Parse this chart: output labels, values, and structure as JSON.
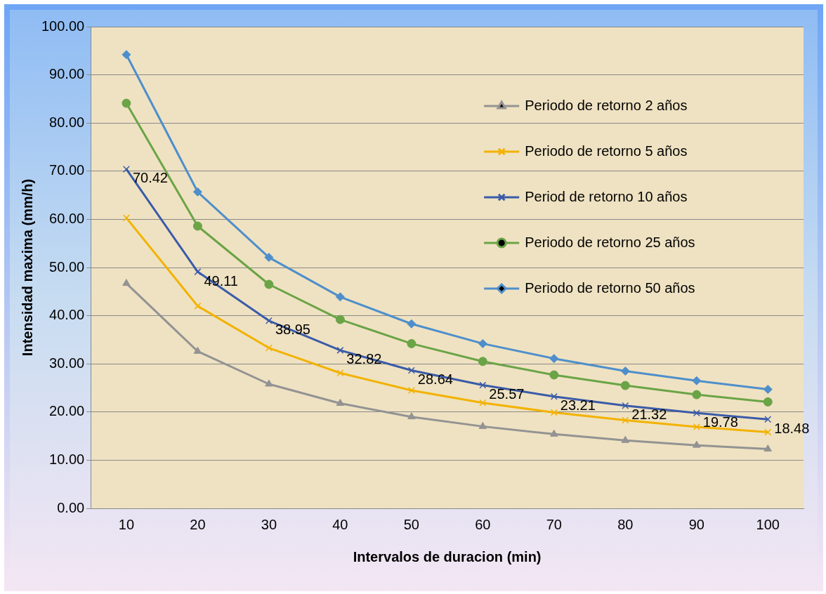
{
  "chart_data": {
    "type": "line",
    "xlabel": "Intervalos de duracion (min)",
    "ylabel": "Intensidad maxima (mm/h)",
    "categories": [
      "10",
      "20",
      "30",
      "40",
      "50",
      "60",
      "70",
      "80",
      "90",
      "100"
    ],
    "ylim": [
      0,
      100
    ],
    "yticks": [
      {
        "value": 0,
        "label": "0.00"
      },
      {
        "value": 10,
        "label": "10.00"
      },
      {
        "value": 20,
        "label": "20.00"
      },
      {
        "value": 30,
        "label": "30.00"
      },
      {
        "value": 40,
        "label": "40.00"
      },
      {
        "value": 50,
        "label": "50.00"
      },
      {
        "value": 60,
        "label": "60.00"
      },
      {
        "value": 70,
        "label": "70.00"
      },
      {
        "value": 80,
        "label": "80.00"
      },
      {
        "value": 90,
        "label": "90.00"
      },
      {
        "value": 100,
        "label": "100.00"
      }
    ],
    "grid": "y",
    "legend": "right",
    "series": [
      {
        "name": "Periodo de retorno 2 años",
        "color": "#939393",
        "marker": "triangle",
        "values": [
          46.7,
          32.6,
          25.8,
          21.8,
          19.0,
          17.0,
          15.4,
          14.1,
          13.1,
          12.3
        ]
      },
      {
        "name": "Periodo de retorno 5 años",
        "color": "#f2b200",
        "marker": "cross",
        "values": [
          60.3,
          42.0,
          33.3,
          28.1,
          24.5,
          21.9,
          19.9,
          18.3,
          16.9,
          15.8
        ]
      },
      {
        "name": "Period de retorno 10 años",
        "color": "#3a5ba8",
        "marker": "cross",
        "values": [
          70.42,
          49.11,
          38.95,
          32.82,
          28.64,
          25.57,
          23.21,
          21.32,
          19.78,
          18.48
        ],
        "value_labels": [
          "70.42",
          "49.11",
          "38.95",
          "32.82",
          "28.64",
          "25.57",
          "23.21",
          "21.32",
          "19.78",
          "18.48"
        ]
      },
      {
        "name": "Periodo de retorno 25 años",
        "color": "#6aa446",
        "marker": "circle",
        "values": [
          84.1,
          58.6,
          46.5,
          39.2,
          34.2,
          30.5,
          27.7,
          25.5,
          23.6,
          22.1
        ]
      },
      {
        "name": "Periodo de retorno 50 años",
        "color": "#4e8fcb",
        "marker": "diamond",
        "values": [
          94.2,
          65.7,
          52.1,
          43.9,
          38.3,
          34.2,
          31.1,
          28.5,
          26.5,
          24.7
        ]
      }
    ]
  }
}
